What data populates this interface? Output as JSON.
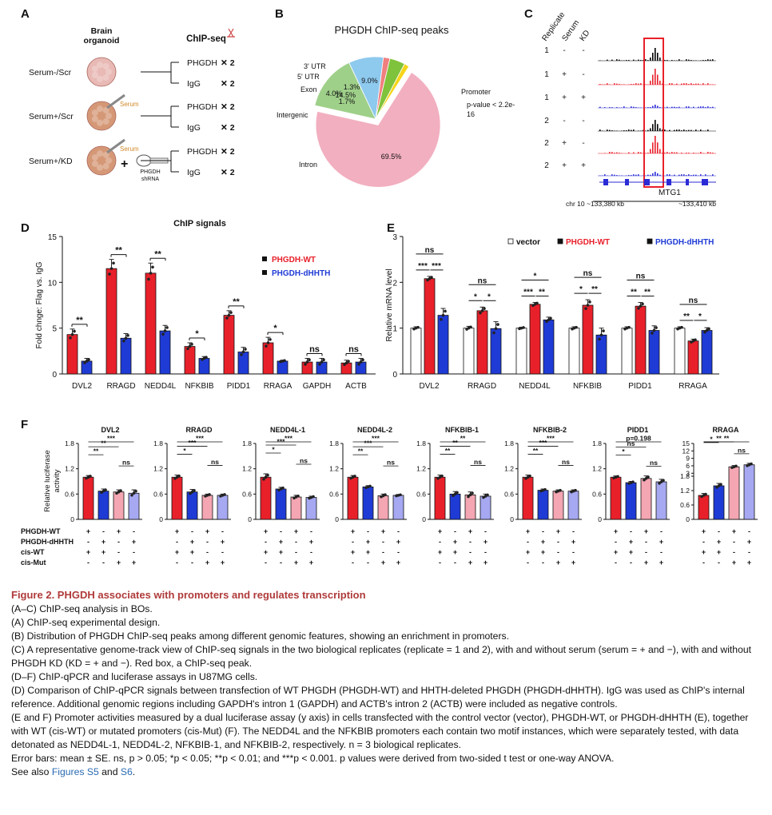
{
  "panel_labels": [
    "A",
    "B",
    "C",
    "D",
    "E",
    "F"
  ],
  "panelA": {
    "col1_header": "Brain\norganoid",
    "col2_header": "ChIP-seq",
    "rows": [
      {
        "label": "Serum-/Scr",
        "serum_text": ""
      },
      {
        "label": "Serum+/Scr",
        "serum_text": "Serum"
      },
      {
        "label": "Serum+/KD",
        "serum_text": "Serum",
        "shrna_text": "PHGDH\nshRNA"
      }
    ],
    "targets": [
      "PHGDH",
      "IgG"
    ],
    "times": "✕ 2"
  },
  "chart_data": [
    {
      "panel": "B",
      "type": "pie",
      "title": "PHGDH ChIP-seq peaks",
      "slices": [
        {
          "label": "Promoter",
          "value": 69.5,
          "text": "69.5%",
          "color": "#f2afc0"
        },
        {
          "label": "Intron",
          "value": 14.5,
          "text": "14.5%",
          "color": "#9fd08a"
        },
        {
          "label": "Intergenic",
          "value": 9.0,
          "text": "9.0%",
          "color": "#8ec9ee"
        },
        {
          "label": "Exon",
          "value": 1.7,
          "text": "1.7%",
          "color": "#f07f7f"
        },
        {
          "label": "5' UTR",
          "value": 4.0,
          "text": "4.0%",
          "color": "#7fc23b"
        },
        {
          "label": "3' UTR",
          "value": 1.3,
          "text": "1.3%",
          "color": "#f5d51a"
        }
      ],
      "annotation": "p-value < 2.2e-16"
    },
    {
      "panel": "C",
      "type": "other",
      "headers": [
        "Replicate",
        "Serum",
        "KD"
      ],
      "rows": [
        [
          "1",
          "-",
          "-"
        ],
        [
          "1",
          "+",
          "-"
        ],
        [
          "1",
          "+",
          "+"
        ],
        [
          "2",
          "-",
          "-"
        ],
        [
          "2",
          "+",
          "-"
        ],
        [
          "2",
          "+",
          "+"
        ]
      ],
      "track_colors": [
        "#000000",
        "#e8202a",
        "#2b2bd6",
        "#000000",
        "#e8202a",
        "#2b2bd6"
      ],
      "gene": "MTG1",
      "coord_left": "chr 10  ~133,380 kb",
      "coord_right": "~133,410 kb"
    },
    {
      "panel": "D",
      "type": "bar",
      "title": "ChIP signals",
      "ylabel": "Fold chnge: Flag vs. IgG",
      "ylim": [
        0,
        15
      ],
      "yticks": [
        "0",
        "5",
        "10",
        "15"
      ],
      "categories": [
        "DVL2",
        "RRAGD",
        "NEDD4L",
        "NFKBIB",
        "PIDD1",
        "RRAGA",
        "GAPDH",
        "ACTB"
      ],
      "series": [
        {
          "name": "PHGDH-WT",
          "color": "#e8202a",
          "values": [
            4.3,
            11.5,
            11.0,
            3.0,
            6.4,
            3.4,
            1.3,
            1.2
          ],
          "errors": [
            0.6,
            1.0,
            1.1,
            0.4,
            0.5,
            0.6,
            0.4,
            0.3
          ]
        },
        {
          "name": "PHGDH-dHHTH",
          "color": "#1f3bd6",
          "values": [
            1.4,
            3.9,
            4.7,
            1.7,
            2.4,
            1.4,
            1.3,
            1.3
          ],
          "errors": [
            0.3,
            0.5,
            0.6,
            0.2,
            0.5,
            0.1,
            0.4,
            0.4
          ]
        }
      ],
      "significance": [
        "**",
        "**",
        "**",
        "*",
        "**",
        "*",
        "ns",
        "ns"
      ]
    },
    {
      "panel": "E",
      "type": "bar",
      "ylabel": "Relative mRNA level",
      "ylim": [
        0,
        3
      ],
      "yticks": [
        "0",
        "1",
        "2",
        "3"
      ],
      "categories": [
        "DVL2",
        "RRAGD",
        "NEDD4L",
        "NFKBIB",
        "PIDD1",
        "RRAGA"
      ],
      "series": [
        {
          "name": "vector",
          "color": "#ffffff",
          "values": [
            1.0,
            1.0,
            1.0,
            1.0,
            1.0,
            1.0
          ],
          "errors": [
            0.03,
            0.04,
            0.02,
            0.03,
            0.03,
            0.03
          ]
        },
        {
          "name": "PHGDH-WT",
          "color": "#e8202a",
          "values": [
            2.08,
            1.38,
            1.52,
            1.5,
            1.48,
            0.72
          ],
          "errors": [
            0.05,
            0.08,
            0.04,
            0.12,
            0.08,
            0.04
          ]
        },
        {
          "name": "PHGDH-dHHTH",
          "color": "#1f3bd6",
          "values": [
            1.28,
            0.99,
            1.18,
            0.85,
            0.95,
            0.95
          ],
          "errors": [
            0.15,
            0.15,
            0.06,
            0.15,
            0.1,
            0.06
          ]
        }
      ],
      "significance": [
        {
          "top": "ns",
          "left": "***",
          "right": "***"
        },
        {
          "top": "ns",
          "left": "*",
          "right": "*"
        },
        {
          "top": "*",
          "left": "***",
          "right": "**"
        },
        {
          "top": "ns",
          "left": "*",
          "right": "**"
        },
        {
          "top": "ns",
          "left": "**",
          "right": "**"
        },
        {
          "top": "ns",
          "left": "**",
          "right": "*"
        }
      ]
    },
    {
      "panel": "F",
      "type": "bar",
      "ylabel": "Relative luciferase\nactivity",
      "yticks": [
        "0",
        "0.6",
        "1.2",
        "1.8"
      ],
      "ylim": [
        0,
        1.8
      ],
      "series_colors": [
        "#e8202a",
        "#1f3bd6",
        "#f4a6b2",
        "#a6a8f2"
      ],
      "panels": [
        {
          "title": "DVL2",
          "values": [
            1.0,
            0.67,
            0.65,
            0.62
          ],
          "errors": [
            0.04,
            0.05,
            0.05,
            0.08
          ],
          "sig": [
            "**",
            "**",
            "***",
            "ns"
          ]
        },
        {
          "title": "RRAGD",
          "values": [
            1.0,
            0.65,
            0.57,
            0.57
          ],
          "errors": [
            0.05,
            0.06,
            0.03,
            0.03
          ],
          "sig": [
            "*",
            "***",
            "***",
            "ns"
          ]
        },
        {
          "title": "NEDD4L-1",
          "values": [
            1.0,
            0.72,
            0.53,
            0.52
          ],
          "errors": [
            0.08,
            0.04,
            0.04,
            0.03
          ],
          "sig": [
            "*",
            "***",
            "***",
            "ns"
          ]
        },
        {
          "title": "NEDD4L-2",
          "values": [
            1.0,
            0.77,
            0.56,
            0.57
          ],
          "errors": [
            0.04,
            0.03,
            0.04,
            0.02
          ],
          "sig": [
            "**",
            "***",
            "***",
            "ns"
          ]
        },
        {
          "title": "NFKBIB-1",
          "values": [
            1.0,
            0.6,
            0.58,
            0.55
          ],
          "errors": [
            0.05,
            0.06,
            0.07,
            0.05
          ],
          "sig": [
            "**",
            "**",
            "**",
            "ns"
          ]
        },
        {
          "title": "NFKBIB-2",
          "values": [
            1.0,
            0.69,
            0.67,
            0.67
          ],
          "errors": [
            0.05,
            0.03,
            0.03,
            0.03
          ],
          "sig": [
            "**",
            "***",
            "***",
            "ns"
          ]
        },
        {
          "title": "PIDD1",
          "values": [
            1.0,
            0.87,
            0.97,
            0.89
          ],
          "errors": [
            0.03,
            0.03,
            0.06,
            0.06
          ],
          "sig": [
            "*",
            "ns",
            "p=0.198",
            "ns"
          ]
        },
        {
          "title": "RRAGA",
          "values": [
            1.0,
            1.4,
            5.6,
            6.4
          ],
          "errors": [
            0.08,
            0.1,
            0.5,
            0.6
          ],
          "sig": [
            "*",
            "**",
            "**",
            "ns"
          ],
          "ylim": [
            0,
            15
          ],
          "yticks": [
            "0",
            "0.6",
            "1.2",
            "1.8",
            "3",
            "6",
            "9",
            "12",
            "15"
          ]
        }
      ],
      "condition_labels": [
        "PHGDH-WT",
        "PHGDH-dHHTH",
        "cis-WT",
        "cis-Mut"
      ],
      "condition_matrix": [
        [
          "+",
          "-",
          "+",
          "-"
        ],
        [
          "-",
          "+",
          "-",
          "+"
        ],
        [
          "+",
          "+",
          "-",
          "-"
        ],
        [
          "-",
          "-",
          "+",
          "+"
        ]
      ]
    }
  ],
  "legend_D": [
    "PHGDH-WT",
    "PHGDH-dHHTH"
  ],
  "legend_E": [
    "vector",
    "PHGDH-WT",
    "PHGDH-dHHTH"
  ],
  "caption": {
    "title": "Figure 2. PHGDH associates with promoters and regulates transcription",
    "lines": [
      "(A–C) ChIP-seq analysis in BOs.",
      "(A) ChIP-seq experimental design.",
      "(B) Distribution of PHGDH ChIP-seq peaks among different genomic features, showing an enrichment in promoters.",
      "(C) A representative genome-track view of ChIP-seq signals in the two biological replicates (replicate = 1 and 2), with and without serum (serum = + and −), with and without PHGDH KD (KD = + and −). Red box, a ChIP-seq peak.",
      "(D–F) ChIP-qPCR and luciferase assays in U87MG cells.",
      "(D) Comparison of ChIP-qPCR signals between transfection of WT PHGDH (PHGDH-WT) and HHTH-deleted PHGDH (PHGDH-dHHTH). IgG was used as ChIP's internal reference. Additional genomic regions including GAPDH's intron 1 (GAPDH) and ACTB's intron 2 (ACTB) were included as negative controls.",
      "(E and F) Promoter activities measured by a dual luciferase assay (y axis) in cells transfected with the control vector (vector), PHGDH-WT, or PHGDH-dHHTH (E), together with WT (cis-WT) or mutated promoters (cis-Mut) (F). The NEDD4L and the NFKBIB promoters each contain two motif instances, which were separately tested, with data detonated as NEDD4L-1, NEDD4L-2, NFKBIB-1, and NFKBIB-2, respectively. n = 3 biological replicates.",
      "Error bars: mean ± SE. ns, p > 0.05; *p < 0.05; **p < 0.01; and ***p < 0.001. p values were derived from two-sided t test or one-way ANOVA."
    ],
    "see_also_prefix": "See also ",
    "see_also_link1": "Figures S5",
    "see_also_mid": " and ",
    "see_also_link2": "S6",
    "see_also_suffix": "."
  }
}
